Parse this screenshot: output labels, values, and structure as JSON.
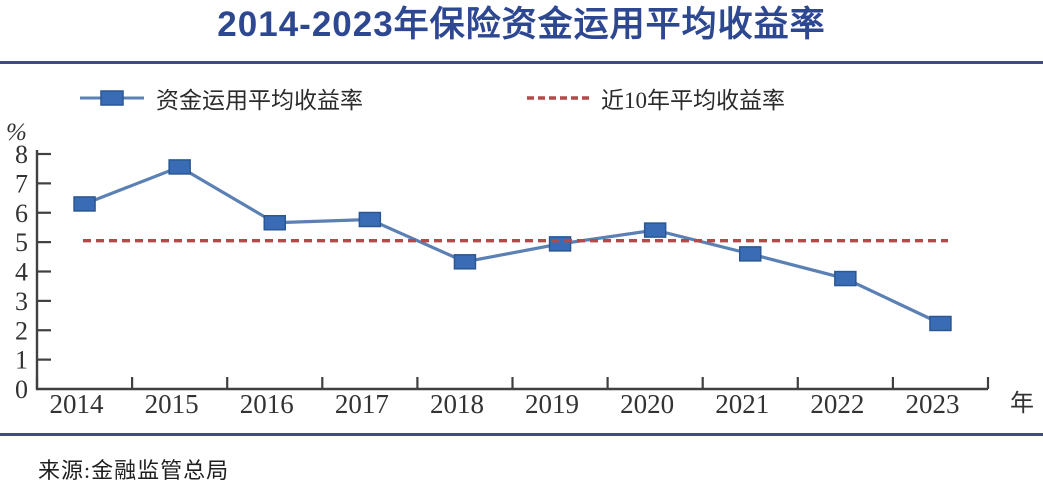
{
  "title": "2014-2023年保险资金运用平均收益率",
  "source": "来源:金融监管总局",
  "colors": {
    "title": "#2d4791",
    "rule": "#3f4c7e",
    "series_line": "#5b80b4",
    "marker_fill": "#3a6cb5",
    "marker_border": "#2a5793",
    "dashed_line": "#b34a4a",
    "axis": "#404040",
    "tick_label": "#333333"
  },
  "legend": {
    "series_label": "资金运用平均收益率",
    "average_label": "近10年平均收益率"
  },
  "chart_data": {
    "type": "line",
    "title": "2014-2023年保险资金运用平均收益率",
    "categories": [
      "2014",
      "2015",
      "2016",
      "2017",
      "2018",
      "2019",
      "2020",
      "2021",
      "2022",
      "2023"
    ],
    "series": [
      {
        "name": "资金运用平均收益率",
        "values": [
          6.3,
          7.56,
          5.66,
          5.77,
          4.33,
          4.94,
          5.41,
          4.6,
          3.76,
          2.23
        ]
      }
    ],
    "reference_line": {
      "name": "近10年平均收益率",
      "value": 5.05
    },
    "ylabel": "%",
    "xlabel": "年",
    "ylim": [
      0,
      8
    ],
    "yticks": [
      0,
      1,
      2,
      3,
      4,
      5,
      6,
      7,
      8
    ],
    "grid": false,
    "legend_position": "top",
    "source": "来源:金融监管总局"
  }
}
